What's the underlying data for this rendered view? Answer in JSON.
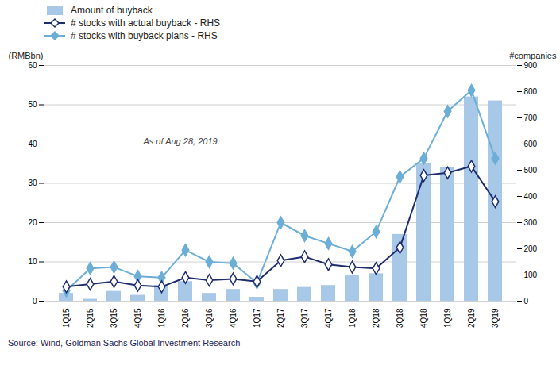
{
  "chart_data": {
    "type": "bar",
    "categories": [
      "1Q15",
      "2Q15",
      "3Q15",
      "4Q15",
      "1Q16",
      "2Q16",
      "3Q16",
      "4Q16",
      "1Q17",
      "2Q17",
      "3Q17",
      "4Q17",
      "1Q18",
      "2Q18",
      "3Q18",
      "4Q18",
      "1Q19",
      "2Q19",
      "3Q19"
    ],
    "series": [
      {
        "name": "Amount of buyback",
        "type": "bar",
        "color": "#a8c8e8",
        "values": [
          2.0,
          0.5,
          2.5,
          1.5,
          4.0,
          5.0,
          2.0,
          3.0,
          1.0,
          3.0,
          3.5,
          4.0,
          6.5,
          7.0,
          17.0,
          35.0,
          34.0,
          52.0,
          51.0
        ]
      },
      {
        "name": "# stocks with actual buyback - RHS",
        "type": "line",
        "axis": "y2",
        "color": "#1f2d6e",
        "marker": "open diamond",
        "values": [
          55,
          65,
          75,
          60,
          55,
          90,
          80,
          85,
          75,
          155,
          170,
          140,
          130,
          125,
          205,
          480,
          490,
          515,
          380
        ]
      },
      {
        "name": "# stocks with buyback plans - RHS",
        "type": "line",
        "axis": "y2",
        "color": "#6baed6",
        "marker": "diamond",
        "values": [
          40,
          125,
          130,
          95,
          90,
          195,
          150,
          145,
          70,
          300,
          250,
          220,
          190,
          265,
          475,
          545,
          725,
          805,
          545
        ]
      }
    ],
    "ylabel": "(RMBbn)",
    "y2label": "#companies",
    "ylim": [
      0,
      60
    ],
    "yticks": [
      0,
      10,
      20,
      30,
      40,
      50,
      60
    ],
    "y2lim": [
      0,
      900
    ],
    "y2ticks": [
      0,
      100,
      200,
      300,
      400,
      500,
      600,
      700,
      800,
      900
    ],
    "grid": true,
    "legend": "upper left",
    "annotations": [
      "As of Aug 28, 2019."
    ],
    "source": "Source: Wind, Goldman Sachs Global Investment Research"
  }
}
